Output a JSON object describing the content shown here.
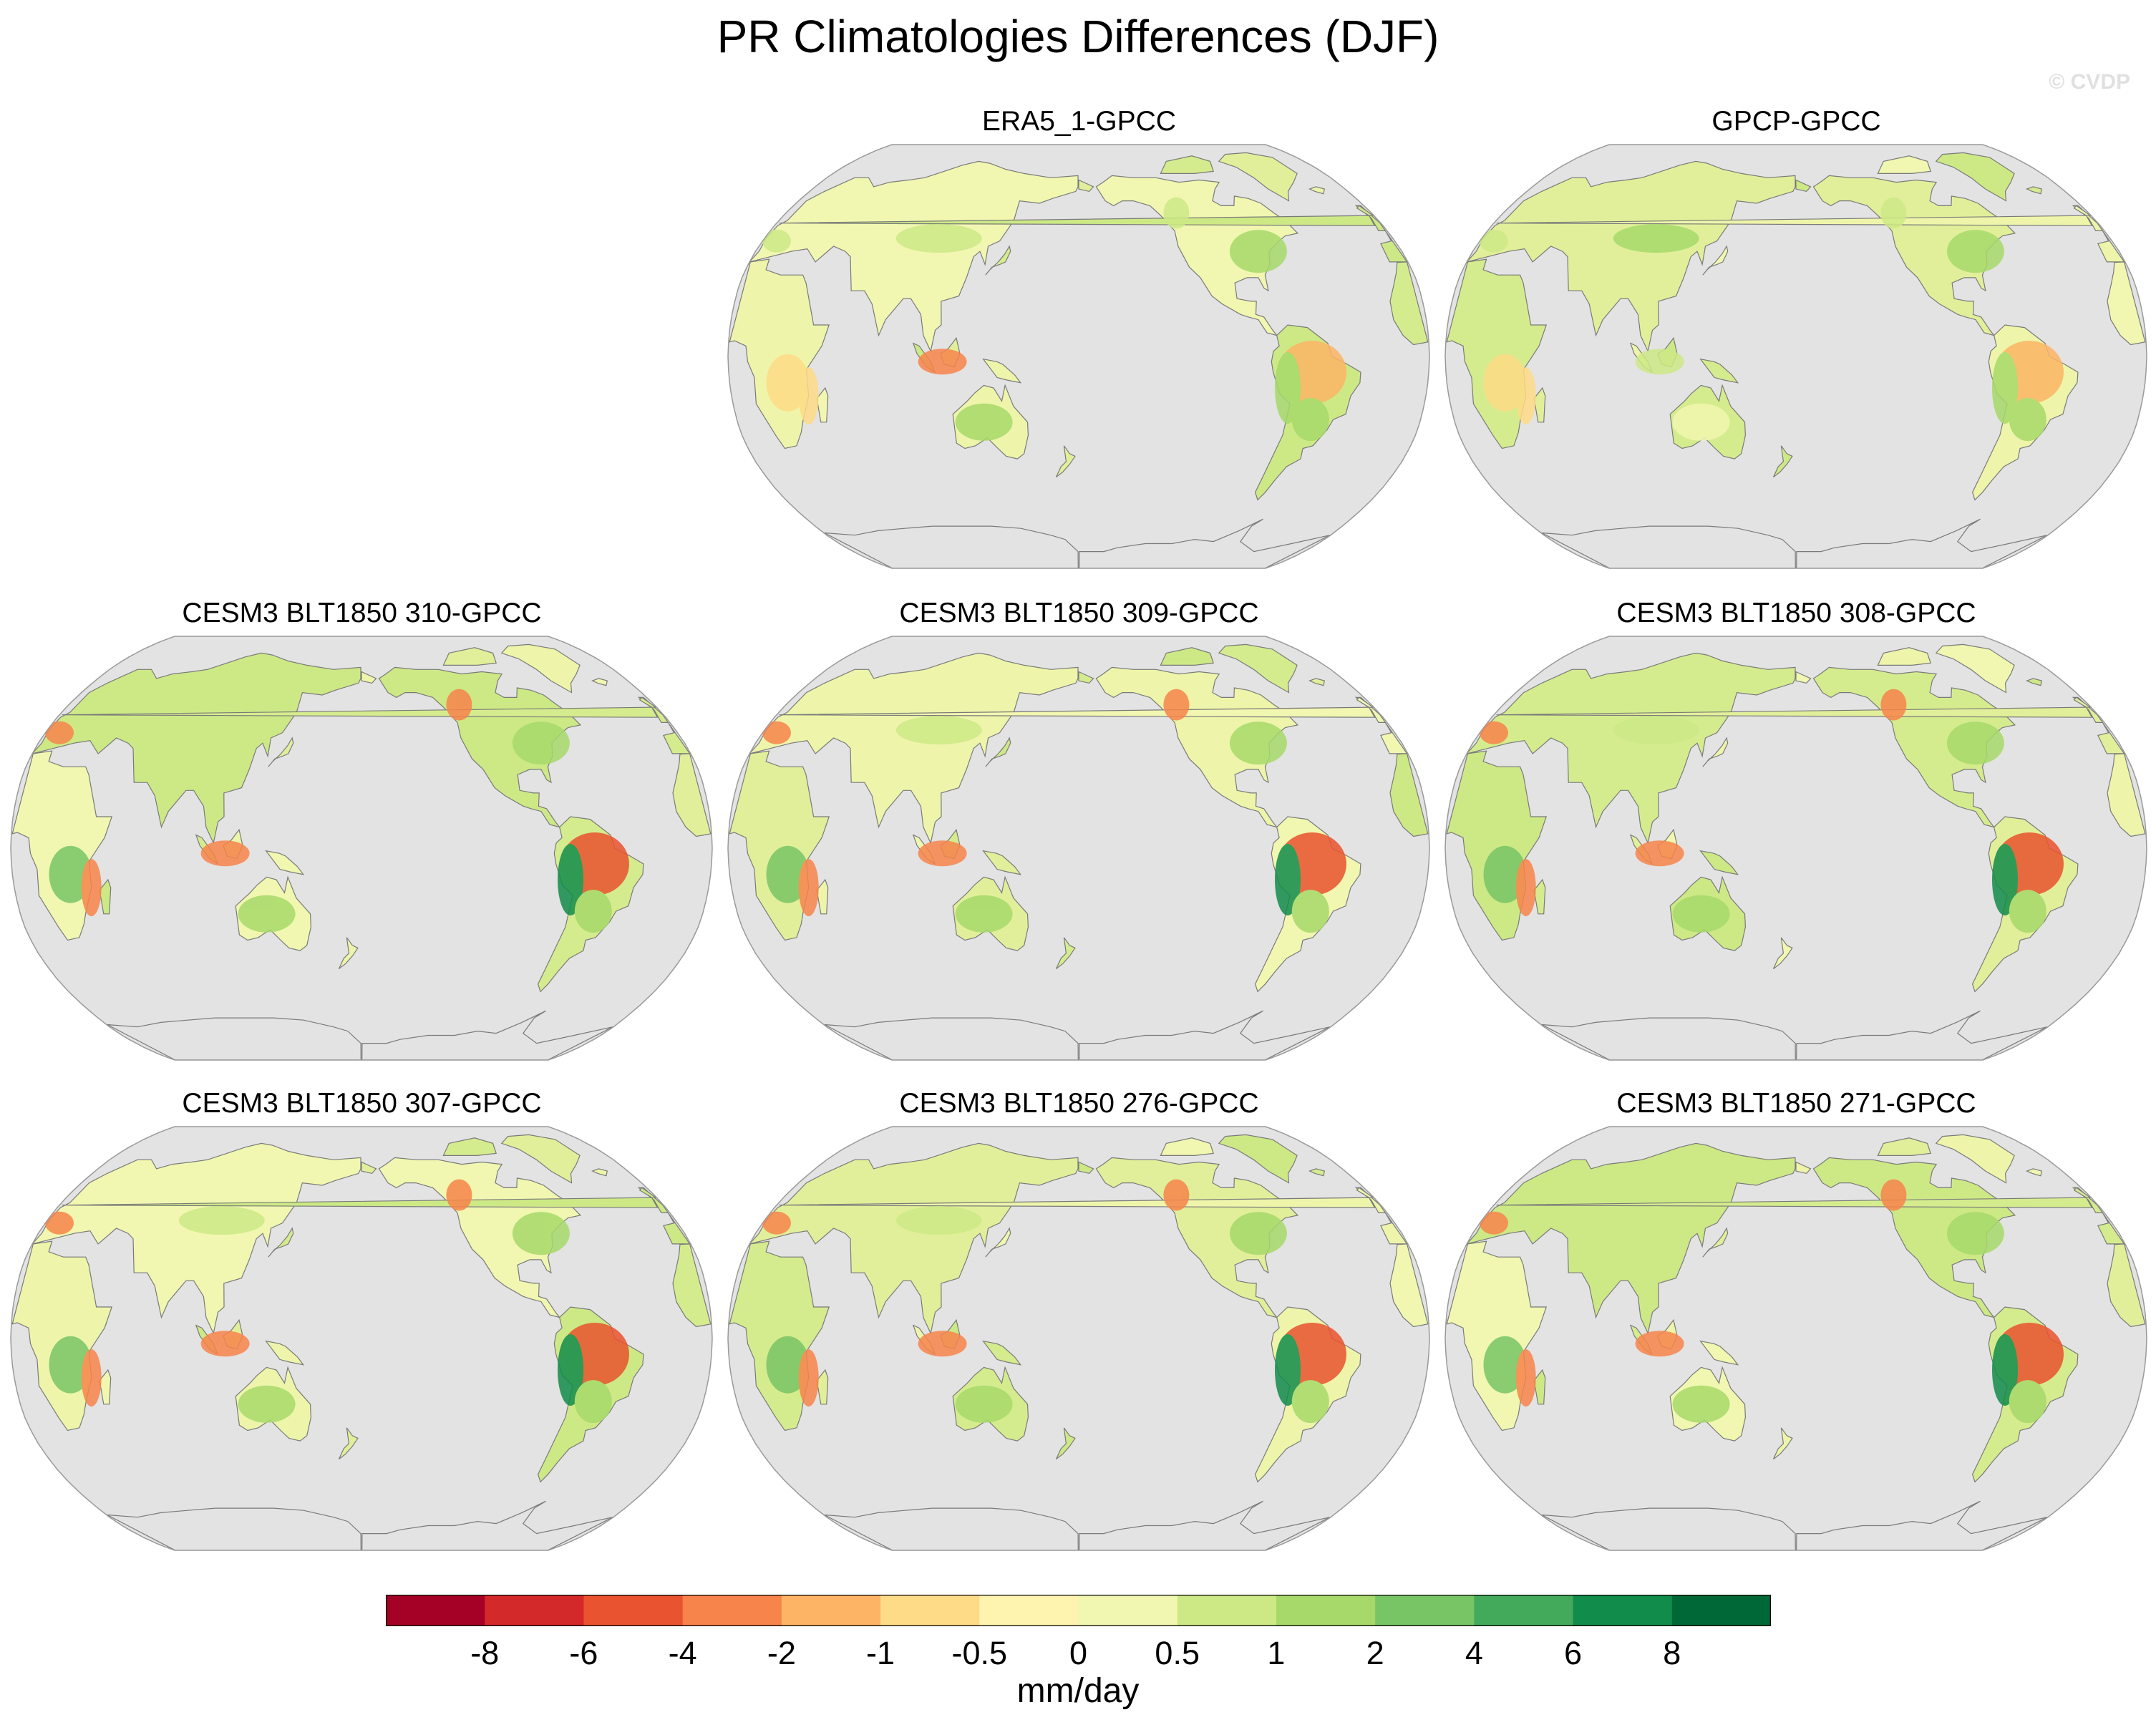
{
  "title": "PR Climatologies Differences (DJF)",
  "watermark": "© CVDP",
  "map": {
    "projection": "Robinson",
    "central_longitude": 180,
    "land_colors_note": "difference shaded on land; ocean gray",
    "ocean_color": "#e3e3e3",
    "coast_color": "#7a7a7a"
  },
  "panels": [
    {
      "label": "ERA5_1-GPCC"
    },
    {
      "label": "GPCP-GPCC"
    },
    {
      "label": "CESM3 BLT1850 310-GPCC"
    },
    {
      "label": "CESM3 BLT1850 309-GPCC"
    },
    {
      "label": "CESM3 BLT1850 308-GPCC"
    },
    {
      "label": "CESM3 BLT1850 307-GPCC"
    },
    {
      "label": "CESM3 BLT1850 276-GPCC"
    },
    {
      "label": "CESM3 BLT1850 271-GPCC"
    }
  ],
  "colorbar": {
    "unit": "mm/day",
    "tick_labels": [
      "-8",
      "-6",
      "-4",
      "-2",
      "-1",
      "-0.5",
      "0",
      "0.5",
      "1",
      "2",
      "4",
      "6",
      "8"
    ],
    "colors": [
      "#a50026",
      "#d3292a",
      "#e9532f",
      "#f7844b",
      "#fdb565",
      "#fedb86",
      "#fff3b0",
      "#f1f7b0",
      "#cde986",
      "#a7d96a",
      "#78c566",
      "#43aa5b",
      "#128c4a",
      "#006837"
    ]
  }
}
